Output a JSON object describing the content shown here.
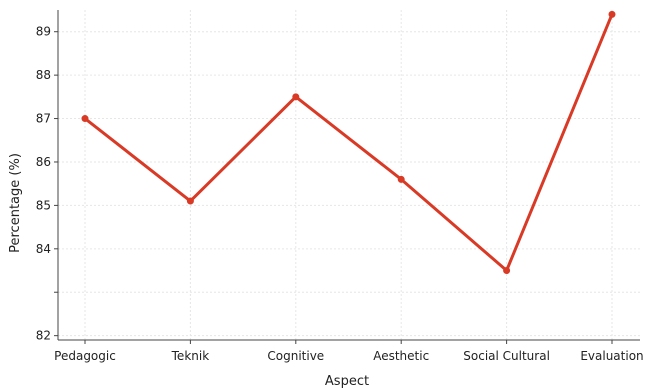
{
  "chart_data": {
    "type": "line",
    "title": "",
    "xlabel": "Aspect",
    "ylabel": "Percentage (%)",
    "categories": [
      "Pedagogic",
      "Teknik",
      "Cognitive",
      "Aesthetic",
      "Social Cultural",
      "Evaluation"
    ],
    "series": [
      {
        "values": [
          87.0,
          85.1,
          87.5,
          85.6,
          83.5,
          89.4
        ]
      }
    ],
    "yticks": [
      82,
      83,
      84,
      85,
      86,
      87,
      88,
      89
    ],
    "ytick_labels": [
      "82",
      "",
      "84",
      "85",
      "86",
      "87",
      "88",
      "89"
    ],
    "ylim": [
      81.9,
      89.5
    ],
    "grid": true,
    "line_color": "#d93a26",
    "grid_color": "#e6e6e6"
  }
}
